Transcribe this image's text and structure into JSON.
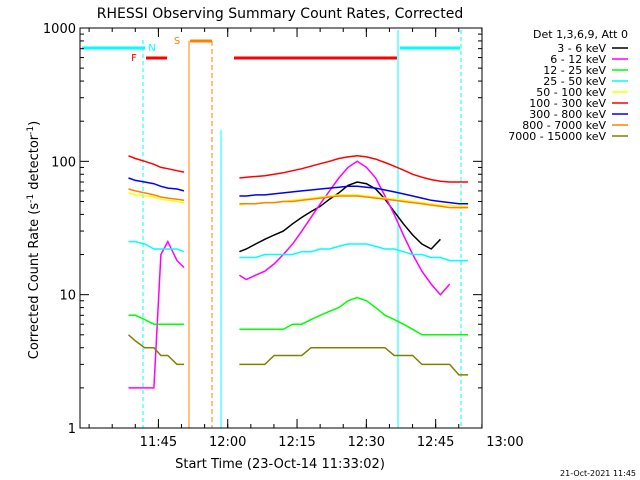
{
  "chart_data": {
    "type": "line",
    "title": "RHESSI Observing Summary Count Rates, Corrected",
    "xlabel": "Start Time (23-Oct-14 11:33:02)",
    "ylabel": "Corrected Count Rate (s",
    "ylabel_exp": "-1",
    "ylabel_mid": " detector",
    "ylabel_exp2": "-1",
    "ylabel_end": ")",
    "yscale": "log",
    "ylim": [
      1,
      1000
    ],
    "xlim_minutes": [
      -5.0,
      82.0
    ],
    "x_ticks": [
      {
        "label": "11:45",
        "minutes": 11.97
      },
      {
        "label": "12:00",
        "minutes": 26.97
      },
      {
        "label": "12:15",
        "minutes": 41.97
      },
      {
        "label": "12:30",
        "minutes": 56.97
      },
      {
        "label": "12:45",
        "minutes": 71.97
      },
      {
        "label": "13:00",
        "minutes": 86.97
      }
    ],
    "y_ticks": [
      {
        "label": "1",
        "value": 1
      },
      {
        "label": "10",
        "value": 10
      },
      {
        "label": "100",
        "value": 100
      },
      {
        "label": "1000",
        "value": 1000
      }
    ],
    "legend_title": "Det 1,3,6,9, Att 0",
    "legend_placement": "right",
    "series": [
      {
        "name": "3 - 6 keV",
        "color": "#000000",
        "x": [
          5.5,
          7,
          9,
          11,
          12.5,
          14,
          16,
          17.5,
          29.5,
          31,
          33,
          35,
          37,
          39,
          41,
          43,
          45,
          47,
          49,
          51,
          53,
          55,
          57,
          59,
          61,
          63,
          65,
          67,
          69,
          71,
          73,
          75,
          77,
          79
        ],
        "y": [
          null,
          null,
          null,
          null,
          null,
          null,
          null,
          null,
          21,
          22,
          24,
          26,
          28,
          30,
          34,
          38,
          42,
          46,
          52,
          58,
          66,
          70,
          68,
          62,
          52,
          42,
          34,
          28,
          24,
          22,
          26,
          null,
          null,
          null
        ]
      },
      {
        "name": "6 - 12 keV",
        "color": "#ff00ff",
        "x": [
          5.5,
          7,
          9,
          11,
          12.5,
          14,
          16,
          17.5,
          29.5,
          31,
          33,
          35,
          37,
          39,
          41,
          43,
          45,
          47,
          49,
          51,
          53,
          55,
          57,
          59,
          61,
          63,
          65,
          67,
          69,
          71,
          73,
          75,
          77,
          79
        ],
        "y": [
          2,
          2,
          2,
          2,
          20,
          25,
          18,
          16,
          14,
          13,
          14,
          15,
          17,
          20,
          24,
          30,
          38,
          48,
          60,
          75,
          90,
          100,
          90,
          75,
          55,
          40,
          28,
          20,
          15,
          12,
          10,
          12,
          null,
          null
        ]
      },
      {
        "name": "12 - 25 keV",
        "color": "#00ff00",
        "x": [
          5.5,
          7,
          9,
          11,
          12.5,
          14,
          16,
          17.5,
          29.5,
          31,
          33,
          35,
          37,
          39,
          41,
          43,
          45,
          47,
          49,
          51,
          53,
          55,
          57,
          59,
          61,
          63,
          65,
          67,
          69,
          71,
          73,
          75,
          77,
          79
        ],
        "y": [
          7,
          7,
          6.5,
          6,
          6,
          6,
          6,
          6,
          5.5,
          5.5,
          5.5,
          5.5,
          5.5,
          5.5,
          6,
          6,
          6.5,
          7,
          7.5,
          8,
          9,
          9.5,
          9,
          8,
          7,
          6.5,
          6,
          5.5,
          5,
          5,
          5,
          5,
          5,
          5
        ]
      },
      {
        "name": "25 - 50 keV",
        "color": "#00ffff",
        "x": [
          5.5,
          7,
          9,
          11,
          12.5,
          14,
          16,
          17.5,
          29.5,
          31,
          33,
          35,
          37,
          39,
          41,
          43,
          45,
          47,
          49,
          51,
          53,
          55,
          57,
          59,
          61,
          63,
          65,
          67,
          69,
          71,
          73,
          75,
          77,
          79
        ],
        "y": [
          25,
          25,
          24,
          22,
          22,
          22,
          22,
          21,
          19,
          19,
          19,
          20,
          20,
          20,
          20,
          21,
          21,
          22,
          22,
          23,
          24,
          24,
          24,
          23,
          22,
          22,
          21,
          20,
          20,
          19,
          19,
          18,
          18,
          18
        ]
      },
      {
        "name": "50 - 100 keV",
        "color": "#ffff00",
        "x": [
          5.5,
          7,
          9,
          11,
          12.5,
          14,
          16,
          17.5,
          29.5,
          31,
          33,
          35,
          37,
          39,
          41,
          43,
          45,
          47,
          49,
          51,
          53,
          55,
          57,
          59,
          61,
          63,
          65,
          67,
          69,
          71,
          73,
          75,
          77,
          79
        ],
        "y": [
          58,
          56,
          55,
          54,
          52,
          51,
          50,
          49,
          47,
          48,
          48,
          49,
          49,
          50,
          51,
          52,
          53,
          54,
          55,
          56,
          56,
          56,
          55,
          54,
          53,
          52,
          51,
          50,
          49,
          48,
          47,
          47,
          46,
          46
        ]
      },
      {
        "name": "100 - 300 keV",
        "color": "#ff0000",
        "x": [
          5.5,
          7,
          9,
          11,
          12.5,
          14,
          16,
          17.5,
          29.5,
          31,
          33,
          35,
          37,
          39,
          41,
          43,
          45,
          47,
          49,
          51,
          53,
          55,
          57,
          59,
          61,
          63,
          65,
          67,
          69,
          71,
          73,
          75,
          77,
          79
        ],
        "y": [
          110,
          105,
          100,
          95,
          90,
          88,
          85,
          83,
          75,
          76,
          77,
          78,
          80,
          82,
          85,
          88,
          92,
          96,
          100,
          105,
          108,
          110,
          108,
          104,
          98,
          92,
          86,
          80,
          76,
          73,
          71,
          70,
          70,
          70
        ]
      },
      {
        "name": "300 - 800 keV",
        "color": "#0000ff",
        "x": [
          5.5,
          7,
          9,
          11,
          12.5,
          14,
          16,
          17.5,
          29.5,
          31,
          33,
          35,
          37,
          39,
          41,
          43,
          45,
          47,
          49,
          51,
          53,
          55,
          57,
          59,
          61,
          63,
          65,
          67,
          69,
          71,
          73,
          75,
          77,
          79
        ],
        "y": [
          75,
          72,
          70,
          68,
          65,
          63,
          62,
          60,
          55,
          55,
          56,
          56,
          57,
          58,
          59,
          60,
          61,
          62,
          63,
          64,
          65,
          65,
          64,
          63,
          61,
          59,
          57,
          55,
          53,
          51,
          50,
          49,
          48,
          48
        ]
      },
      {
        "name": "800 - 7000 keV",
        "color": "#ff8000",
        "x": [
          5.5,
          7,
          9,
          11,
          12.5,
          14,
          16,
          17.5,
          29.5,
          31,
          33,
          35,
          37,
          39,
          41,
          43,
          45,
          47,
          49,
          51,
          53,
          55,
          57,
          59,
          61,
          63,
          65,
          67,
          69,
          71,
          73,
          75,
          77,
          79
        ],
        "y": [
          62,
          60,
          58,
          56,
          54,
          53,
          52,
          51,
          48,
          48,
          48,
          49,
          49,
          50,
          50,
          51,
          52,
          53,
          54,
          55,
          55,
          55,
          54,
          53,
          52,
          51,
          50,
          49,
          48,
          47,
          46,
          45,
          45,
          45
        ]
      },
      {
        "name": "7000 - 15000 keV",
        "color": "#808000",
        "x": [
          5.5,
          7,
          9,
          11,
          12.5,
          14,
          16,
          17.5,
          29.5,
          31,
          33,
          35,
          37,
          39,
          41,
          43,
          45,
          47,
          49,
          51,
          53,
          55,
          57,
          59,
          61,
          63,
          65,
          67,
          69,
          71,
          73,
          75,
          77,
          79
        ],
        "y": [
          5,
          4.5,
          4,
          4,
          3.5,
          3.5,
          3,
          3,
          3,
          3,
          3,
          3,
          3.5,
          3.5,
          3.5,
          3.5,
          4,
          4,
          4,
          4,
          4,
          4,
          4,
          4,
          4,
          3.5,
          3.5,
          3.5,
          3,
          3,
          3,
          3,
          2.5,
          2.5
        ]
      }
    ],
    "annotations": [
      {
        "label": "F",
        "color": "#ff0000"
      },
      {
        "label": "N",
        "color": "#00ffff"
      },
      {
        "label": "S",
        "color": "#ff8000"
      }
    ],
    "footer_timestamp": "21-Oct-2021 11:45"
  }
}
